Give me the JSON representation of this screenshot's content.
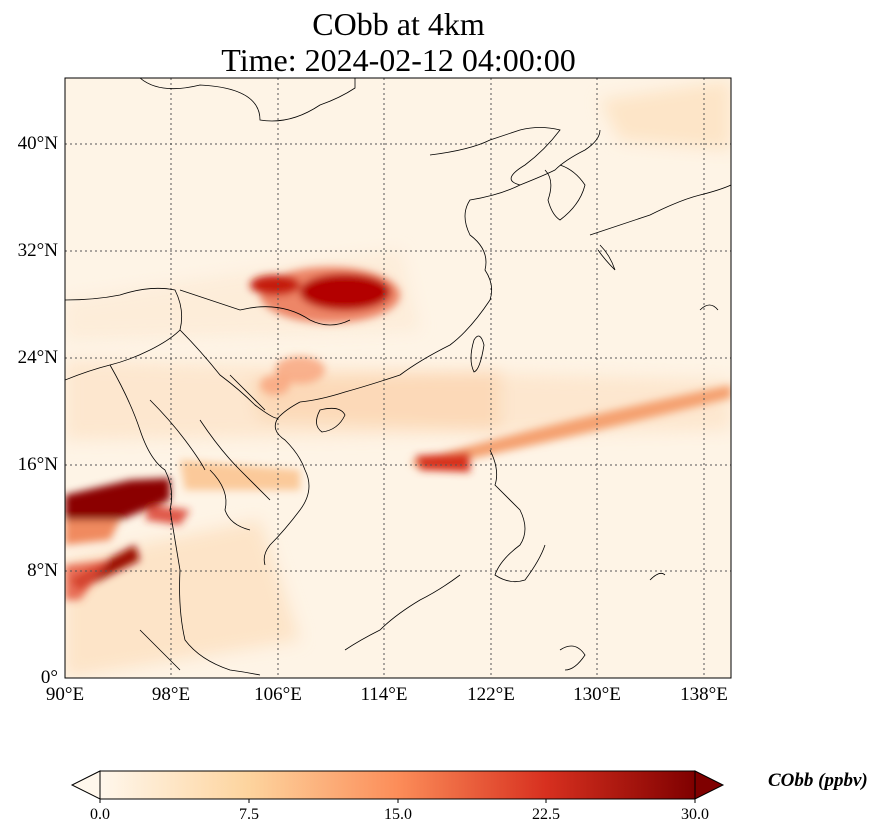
{
  "title": "CObb at 4km",
  "subtitle": "Time: 2024-02-12 04:00:00",
  "map": {
    "lat_ticks": [
      "40°N",
      "32°N",
      "24°N",
      "16°N",
      "8°N",
      "0°"
    ],
    "lon_ticks": [
      "90°E",
      "98°E",
      "106°E",
      "114°E",
      "122°E",
      "130°E",
      "138°E"
    ],
    "extent": {
      "lon_min": 90,
      "lon_max": 140,
      "lat_min": 0,
      "lat_max": 45
    },
    "gridlines": "dotted"
  },
  "colorbar": {
    "label": "CObb (ppbv)",
    "ticks": [
      "0.0",
      "7.5",
      "15.0",
      "22.5",
      "30.0"
    ],
    "colormap": "OrRd",
    "colors": [
      "#fff7ec",
      "#fdd49e",
      "#fc8d59",
      "#d7301f",
      "#7f0000"
    ],
    "extend": "both"
  }
}
